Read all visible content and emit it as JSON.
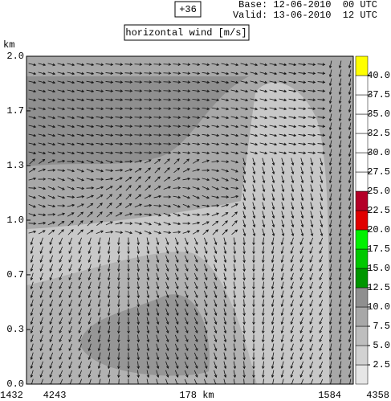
{
  "header": {
    "forecast_step": "+36",
    "base": "Base: 12-06-2010  00 UTC",
    "valid": "Valid: 13-06-2010  12 UTC"
  },
  "chart_data": {
    "type": "contour",
    "title": "horizontal wind [m/s]",
    "y_label": "km",
    "ylim": [
      0,
      2
    ],
    "yticks": [
      {
        "value": 0,
        "label": "0.0"
      },
      {
        "value": 0.333,
        "label": "0.3"
      },
      {
        "value": 0.667,
        "label": "0.7"
      },
      {
        "value": 1,
        "label": "1.0"
      },
      {
        "value": 1.333,
        "label": "1.3"
      },
      {
        "value": 1.667,
        "label": "1.7"
      },
      {
        "value": 2,
        "label": "2.0"
      }
    ],
    "x_labels": [
      "1432",
      "4243",
      "178 km",
      "1584",
      "4358"
    ],
    "colorbar": {
      "lim": [
        0,
        42.5
      ],
      "colors": [
        "#e6e6e6",
        "#d2d2d2",
        "#bebebe",
        "#a8a8a8",
        "#8f8f8f",
        "#009600",
        "#00c800",
        "#00f000",
        "#e00000",
        "#b40028",
        "#ffffff",
        "#ffffff",
        "#ffffff",
        "#ffffff",
        "#ffffff",
        "#ffffff",
        "#ffff00"
      ],
      "ticks": [
        2.5,
        {
          "value": 5,
          "label": "5.0"
        },
        7.5,
        {
          "value": 10,
          "label": "10.0"
        },
        12.5,
        {
          "value": 15,
          "label": "15.0"
        },
        17.5,
        {
          "value": 20,
          "label": "20.0"
        },
        22.5,
        {
          "value": 25,
          "label": "25.0"
        },
        27.5,
        {
          "value": 30,
          "label": "30.0"
        },
        32.5,
        {
          "value": 35,
          "label": "35.0"
        },
        37.5,
        {
          "value": 40,
          "label": "40.0"
        }
      ]
    }
  }
}
